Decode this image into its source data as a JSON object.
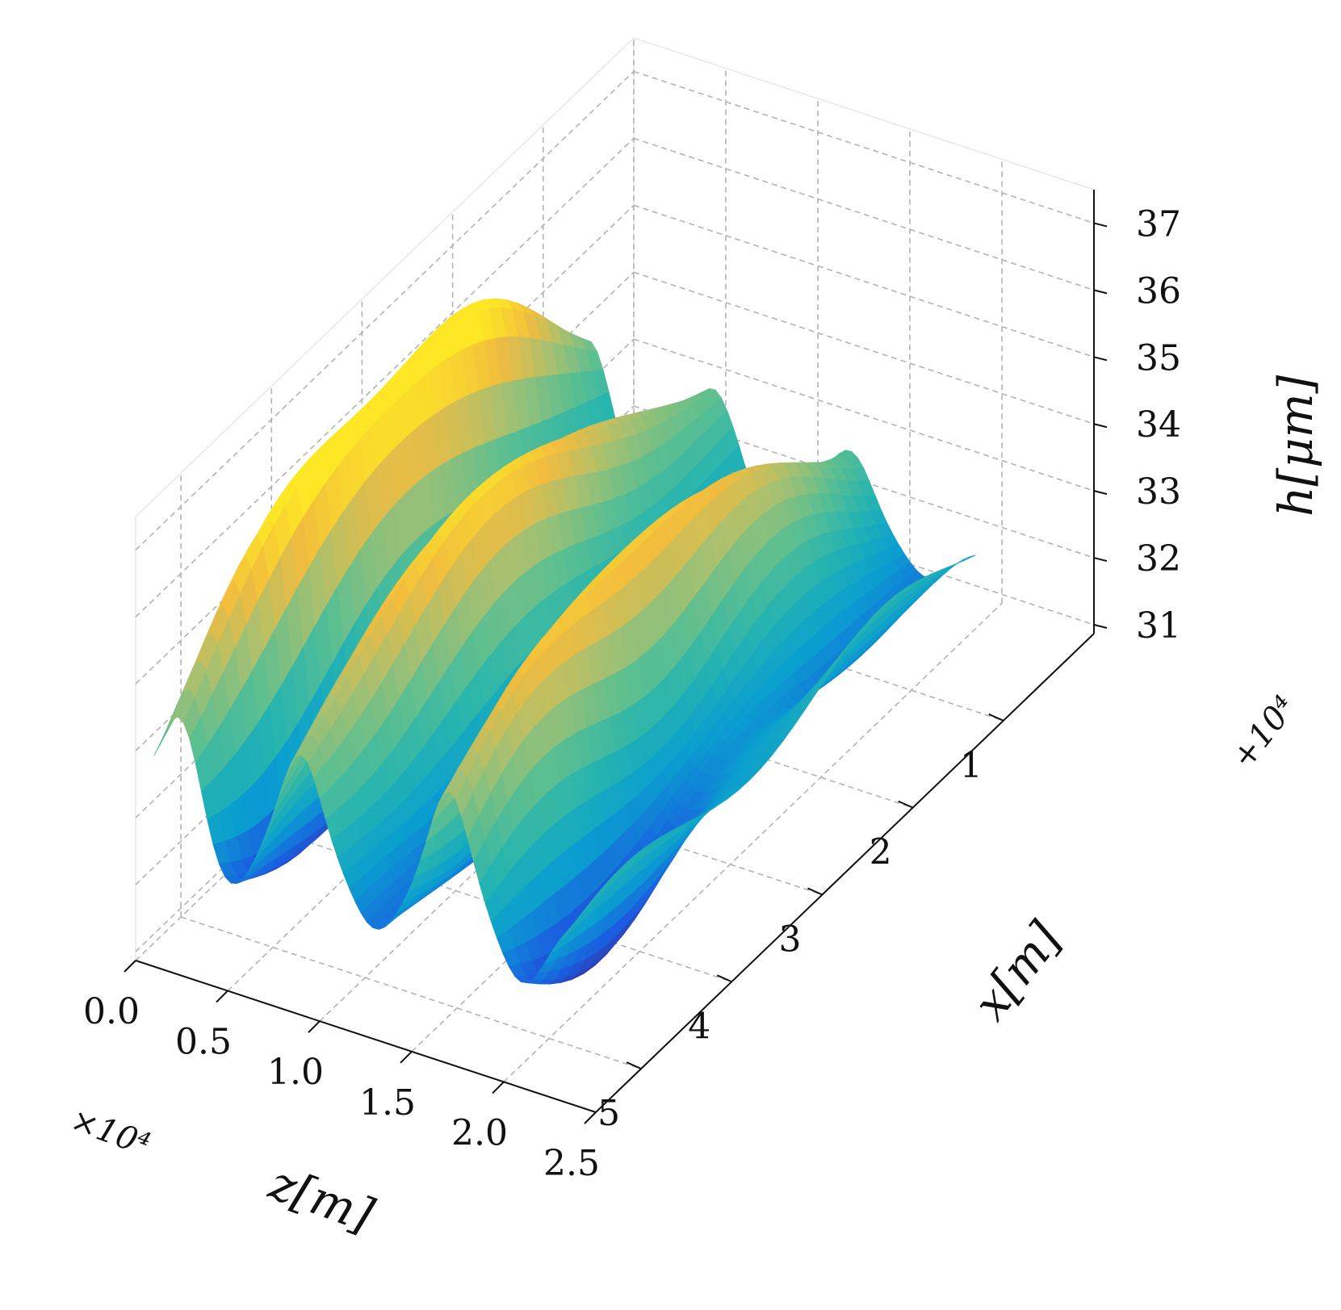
{
  "chart_data": {
    "type": "surface",
    "xlabel": "x[m]",
    "ylabel": "z[m]",
    "zlabel": "h[μm]",
    "x_offset": "+10⁴",
    "z_scale": "×10⁴",
    "x_ticks": [
      "1",
      "2",
      "3",
      "4",
      "5"
    ],
    "z_ticks": [
      "0.0",
      "0.5",
      "1.0",
      "1.5",
      "2.0",
      "2.5"
    ],
    "h_ticks": [
      "31",
      "32",
      "33",
      "34",
      "35",
      "36",
      "37"
    ],
    "x_range": [
      10000,
      15500
    ],
    "z_range": [
      0,
      25000
    ],
    "h_range": [
      31,
      37.5
    ],
    "grid": true,
    "colormap": [
      "#3a2d9c",
      "#1a5ee0",
      "#0a9ed0",
      "#25b4b0",
      "#5cbf90",
      "#a8c070",
      "#f2bc3e",
      "#fde724"
    ],
    "surface": {
      "description_values": {
        "baseline_h": 33.6,
        "ridge_peak_h": 36.4,
        "trough_min_h": 31.6,
        "ridges_along_x_at_z": [
          2000,
          9000,
          17000
        ],
        "ridge_peaks": [
          {
            "x": 14200,
            "z": 2500,
            "h": 36.4
          },
          {
            "x": 12300,
            "z": 2500,
            "h": 36.2
          },
          {
            "x": 14400,
            "z": 9000,
            "h": 35.8
          },
          {
            "x": 12400,
            "z": 9000,
            "h": 35.4
          },
          {
            "x": 14600,
            "z": 17000,
            "h": 35.6
          },
          {
            "x": 12600,
            "z": 17000,
            "h": 35.5
          }
        ]
      }
    }
  }
}
